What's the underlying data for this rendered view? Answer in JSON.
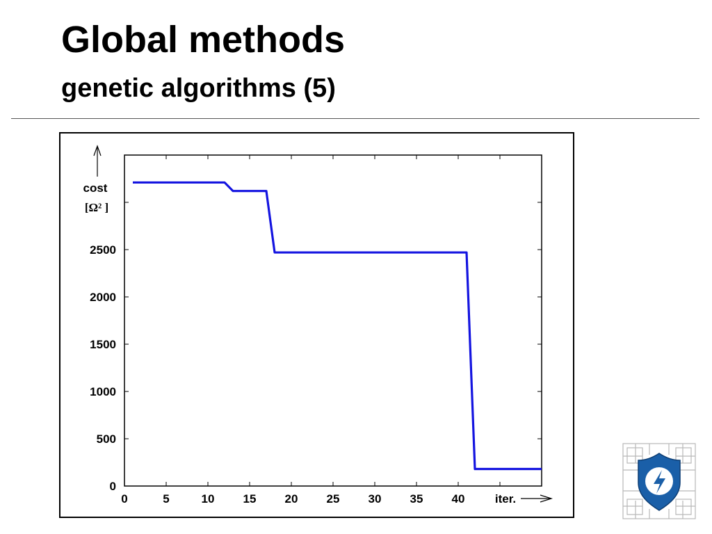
{
  "slide": {
    "title": "Global methods",
    "subtitle": "genetic algorithms (5)"
  },
  "chart_data": {
    "type": "line",
    "title": "",
    "ylabel_line1": "cost",
    "ylabel_line2": "[Ω² ]",
    "xlabel": "iter.",
    "xlim": [
      0,
      50
    ],
    "ylim": [
      0,
      3500
    ],
    "x_ticks": [
      0,
      5,
      10,
      15,
      20,
      25,
      30,
      35,
      40,
      45,
      50
    ],
    "x_tick_labels": [
      "0",
      "5",
      "10",
      "15",
      "20",
      "25",
      "30",
      "35",
      "40",
      "",
      ""
    ],
    "y_ticks": [
      0,
      500,
      1000,
      1500,
      2000,
      2500,
      3000,
      3500
    ],
    "y_tick_labels": [
      "0",
      "500",
      "1000",
      "1500",
      "2000",
      "2500",
      "",
      ""
    ],
    "grid": false,
    "series": [
      {
        "color": "#1414e0",
        "x": [
          1,
          12,
          13,
          17,
          18,
          41,
          42,
          50
        ],
        "y": [
          3210,
          3210,
          3120,
          3120,
          2470,
          2470,
          180,
          180
        ]
      }
    ]
  },
  "logo": {
    "name": "university-shield-logo"
  }
}
